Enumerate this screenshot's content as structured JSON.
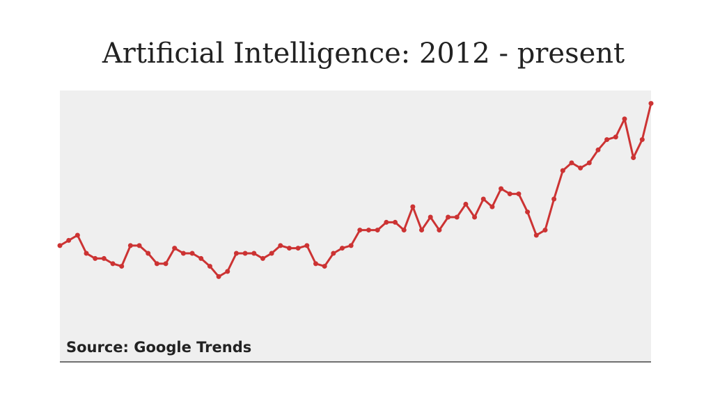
{
  "chart_data": {
    "type": "line",
    "title": "Artificial Intelligence: 2012 - present",
    "source": "Source: Google Trends",
    "color": "#cc3333",
    "ylim": [
      0,
      105
    ],
    "values": [
      45,
      47,
      49,
      42,
      40,
      40,
      38,
      37,
      45,
      45,
      42,
      38,
      38,
      44,
      42,
      42,
      40,
      37,
      33,
      35,
      42,
      42,
      42,
      40,
      42,
      45,
      44,
      44,
      45,
      38,
      37,
      42,
      44,
      45,
      51,
      51,
      51,
      54,
      54,
      51,
      60,
      51,
      56,
      51,
      56,
      56,
      61,
      56,
      63,
      60,
      67,
      65,
      65,
      58,
      49,
      51,
      63,
      74,
      77,
      75,
      77,
      82,
      86,
      87,
      94,
      79,
      86,
      100
    ]
  }
}
